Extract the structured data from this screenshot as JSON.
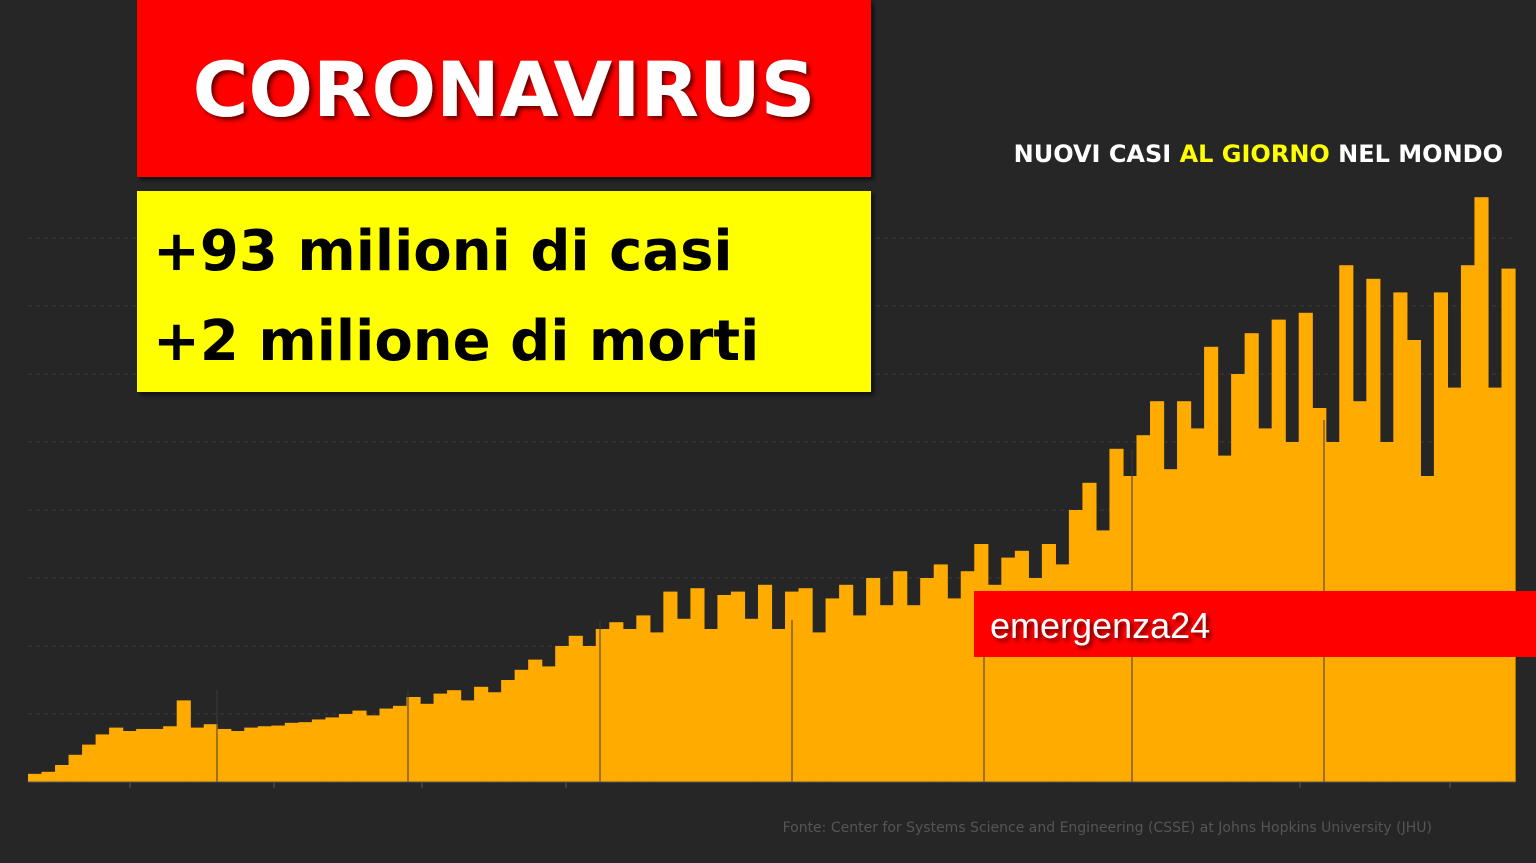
{
  "header": {
    "title": "CORONAVIRUS",
    "lines": [
      "+93 milioni di casi",
      "+2 milione di morti"
    ]
  },
  "brand": "emergenza24",
  "source": "Fonte: Center for Systems Science and Engineering (CSSE) at Johns Hopkins University (JHU)",
  "chart_data": {
    "type": "bar",
    "title_parts": [
      "NUOVI CASI ",
      "AL GIORNO",
      " NEL MONDO"
    ],
    "title_colors": [
      "#ffffff",
      "#ffff00",
      "#ffffff"
    ],
    "color": "#ffab00",
    "ylim": [
      0,
      1000000
    ],
    "ygrid": [
      100000,
      200000,
      300000,
      400000,
      500000,
      600000,
      700000,
      800000
    ],
    "values": [
      12000,
      15000,
      25000,
      40000,
      55000,
      70000,
      80000,
      75000,
      78000,
      78000,
      82000,
      120000,
      80000,
      85000,
      78000,
      75000,
      80000,
      82000,
      83000,
      87000,
      88000,
      92000,
      95000,
      100000,
      105000,
      98000,
      108000,
      112000,
      125000,
      115000,
      130000,
      135000,
      120000,
      140000,
      132000,
      150000,
      165000,
      180000,
      170000,
      200000,
      215000,
      200000,
      225000,
      235000,
      225000,
      245000,
      220000,
      280000,
      240000,
      285000,
      225000,
      275000,
      280000,
      240000,
      290000,
      225000,
      280000,
      285000,
      220000,
      270000,
      290000,
      245000,
      300000,
      260000,
      310000,
      260000,
      300000,
      320000,
      270000,
      310000,
      350000,
      290000,
      330000,
      340000,
      300000,
      350000,
      320000,
      400000,
      440000,
      370000,
      490000,
      450000,
      510000,
      560000,
      460000,
      560000,
      520000,
      640000,
      480000,
      600000,
      660000,
      520000,
      680000,
      500000,
      690000,
      550000,
      500000,
      760000,
      560000,
      740000,
      500000,
      720000,
      650000,
      450000,
      720000,
      580000,
      760000,
      860000,
      580000,
      755000
    ]
  }
}
